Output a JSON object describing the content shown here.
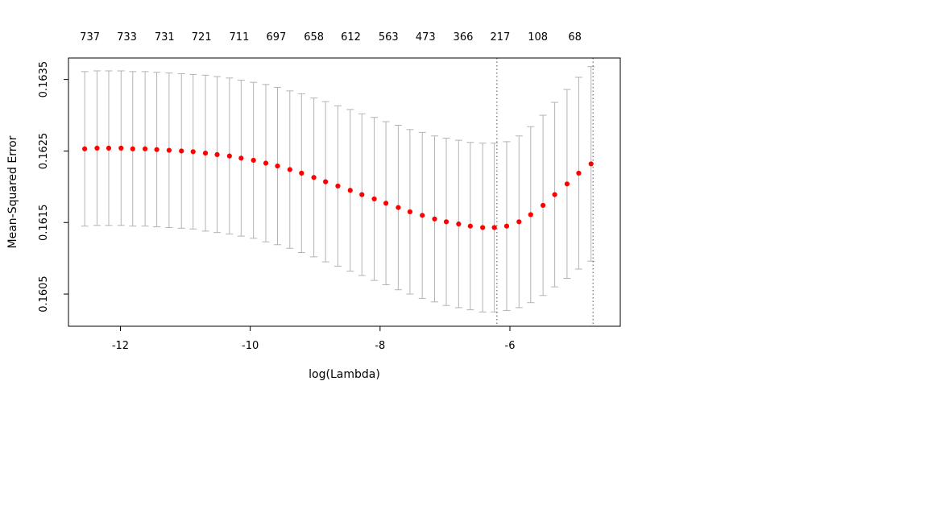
{
  "chart_data": {
    "type": "scatter",
    "title": "",
    "xlabel": "log(Lambda)",
    "ylabel": "Mean-Squared Error",
    "xlim": [
      -12.8,
      -4.3
    ],
    "ylim": [
      0.16005,
      0.1638
    ],
    "grid": false,
    "legend": "none",
    "x_ticks": [
      -12,
      -10,
      -8,
      -6
    ],
    "x_tick_labels": [
      "-12",
      "-10",
      "-8",
      "-6"
    ],
    "y_ticks": [
      0.1605,
      0.1615,
      0.1625,
      0.1635
    ],
    "y_tick_labels": [
      "0.1605",
      "0.1615",
      "0.1625",
      "0.1635"
    ],
    "top_axis": {
      "meaning": "number of nonzero coefficients",
      "entries": [
        {
          "label": "737",
          "x": -12.47
        },
        {
          "label": "733",
          "x": -11.9
        },
        {
          "label": "731",
          "x": -11.32
        },
        {
          "label": "721",
          "x": -10.75
        },
        {
          "label": "711",
          "x": -10.17
        },
        {
          "label": "697",
          "x": -9.6
        },
        {
          "label": "658",
          "x": -9.02
        },
        {
          "label": "612",
          "x": -8.45
        },
        {
          "label": "563",
          "x": -7.87
        },
        {
          "label": "473",
          "x": -7.3
        },
        {
          "label": "366",
          "x": -6.72
        },
        {
          "label": "217",
          "x": -6.15
        },
        {
          "label": "108",
          "x": -5.57
        },
        {
          "label": "68",
          "x": -5.0
        }
      ]
    },
    "series": [
      {
        "name": "mean-cv-error",
        "x": [
          -12.55,
          -12.36,
          -12.18,
          -11.99,
          -11.81,
          -11.62,
          -11.44,
          -11.25,
          -11.06,
          -10.88,
          -10.69,
          -10.51,
          -10.32,
          -10.14,
          -9.95,
          -9.76,
          -9.58,
          -9.39,
          -9.21,
          -9.02,
          -8.84,
          -8.65,
          -8.46,
          -8.28,
          -8.09,
          -7.91,
          -7.72,
          -7.54,
          -7.35,
          -7.16,
          -6.98,
          -6.79,
          -6.61,
          -6.42,
          -6.24,
          -6.05,
          -5.86,
          -5.68,
          -5.49,
          -5.31,
          -5.12,
          -4.94,
          -4.75
        ],
        "mse": [
          0.16253,
          0.16254,
          0.16254,
          0.16254,
          0.16253,
          0.16253,
          0.16252,
          0.16251,
          0.1625,
          0.16249,
          0.16247,
          0.16245,
          0.16243,
          0.1624,
          0.16237,
          0.16233,
          0.16229,
          0.16224,
          0.16219,
          0.16213,
          0.16207,
          0.16201,
          0.16195,
          0.16189,
          0.16183,
          0.16177,
          0.16171,
          0.16165,
          0.1616,
          0.16155,
          0.16151,
          0.16148,
          0.16145,
          0.16143,
          0.16143,
          0.16145,
          0.16151,
          0.16161,
          0.16174,
          0.16189,
          0.16204,
          0.16219,
          0.16232
        ],
        "se": [
          0.00108,
          0.00108,
          0.00108,
          0.00108,
          0.00108,
          0.00108,
          0.00108,
          0.00108,
          0.00108,
          0.00108,
          0.00109,
          0.00109,
          0.00109,
          0.00109,
          0.00109,
          0.0011,
          0.0011,
          0.0011,
          0.00111,
          0.00111,
          0.00112,
          0.00112,
          0.00113,
          0.00113,
          0.00114,
          0.00114,
          0.00115,
          0.00115,
          0.00116,
          0.00116,
          0.00117,
          0.00117,
          0.00117,
          0.00118,
          0.00118,
          0.00118,
          0.0012,
          0.00123,
          0.00126,
          0.00129,
          0.00132,
          0.00134,
          0.00136
        ]
      }
    ],
    "vlines": [
      {
        "name": "lambda-min",
        "x": -6.2,
        "style": "dotted"
      },
      {
        "name": "lambda-1se",
        "x": -4.72,
        "style": "dotted"
      }
    ],
    "colors": {
      "point": "#ff0000",
      "errorbar": "#b3b3b3",
      "vline": "#4d4d4d",
      "axis": "#000000",
      "background": "#ffffff"
    }
  }
}
